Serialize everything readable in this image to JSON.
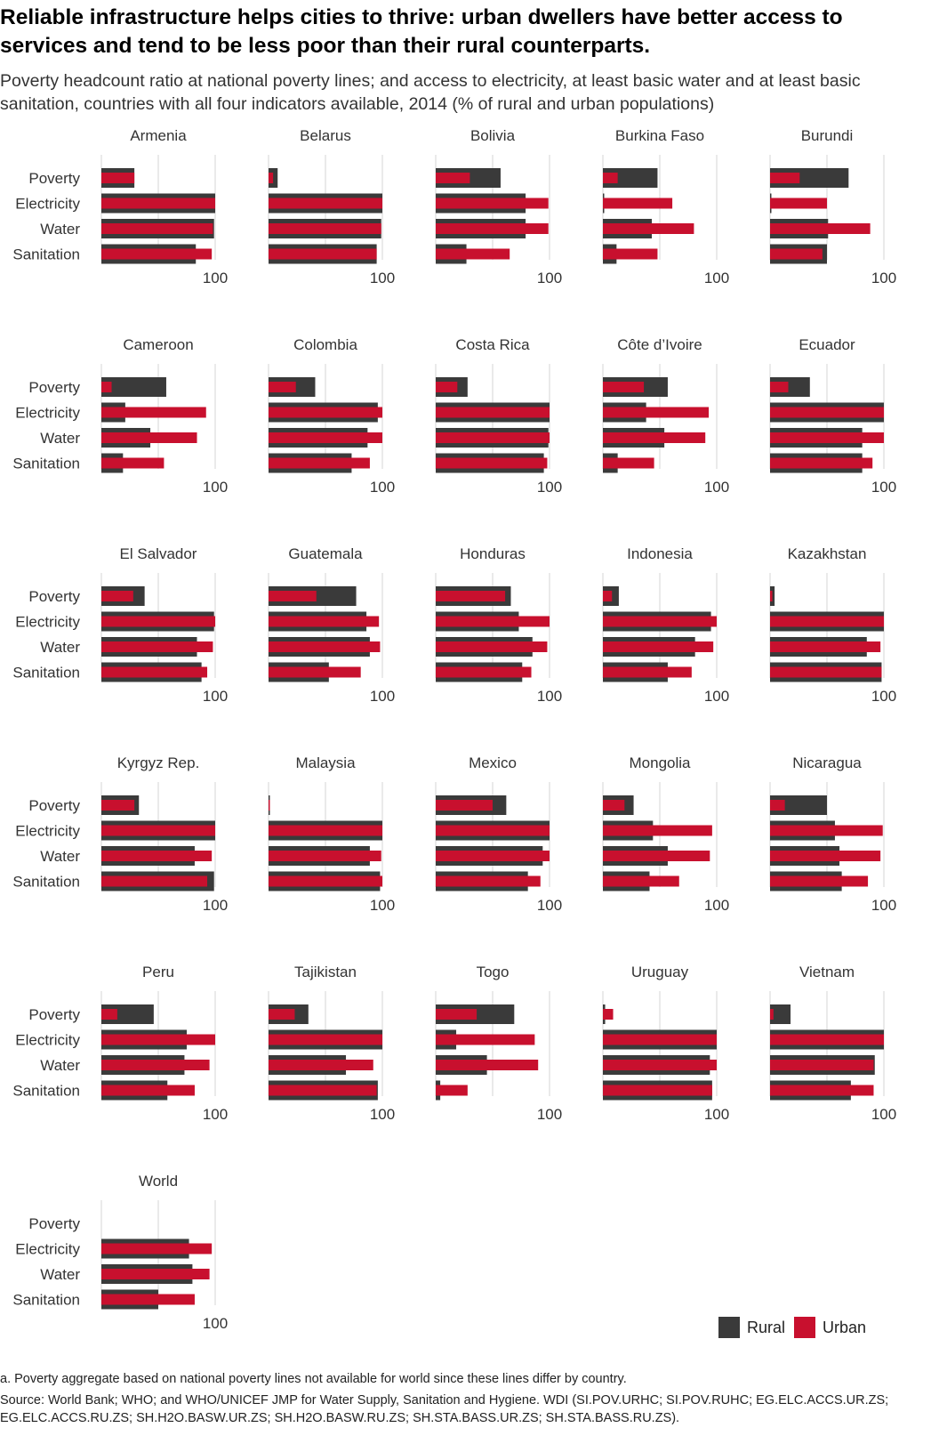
{
  "title": "Reliable infrastructure helps cities to thrive: urban dwellers have better access to services and tend to be less poor than their rural counterparts.",
  "subtitle": "Poverty headcount ratio at national poverty lines; and access to electricity, at least basic water and at least basic sanitation, countries with all four indicators available, 2014 (% of rural and urban populations)",
  "legend": {
    "rural": "Rural",
    "urban": "Urban"
  },
  "footnote": "a. Poverty aggregate based on national poverty lines not available for world since these lines differ by country.",
  "source": "Source: World Bank; WHO; and WHO/UNICEF JMP for Water Supply, Sanitation and Hygiene. WDI (SI.POV.URHC; SI.POV.RUHC; EG.ELC.ACCS.UR.ZS; EG.ELC.ACCS.RU.ZS; SH.H2O.BASW.UR.ZS; SH.H2O.BASW.RU.ZS; SH.STA.BASS.UR.ZS; SH.STA.BASS.RU.ZS).",
  "colors": {
    "rural": "#3a3a3a",
    "urban": "#c8102e",
    "grid": "#e3e3e3"
  },
  "chart_data": {
    "type": "bar",
    "orientation": "horizontal",
    "layout": "small-multiples",
    "xlim": [
      0,
      100
    ],
    "xticks": [
      100
    ],
    "categories": [
      "Poverty",
      "Electricity",
      "Water",
      "Sanitation"
    ],
    "series_names": [
      "Rural",
      "Urban"
    ],
    "panels": [
      {
        "name": "Armenia",
        "rural": [
          29,
          100,
          99,
          83
        ],
        "urban": [
          29,
          100,
          98,
          97
        ]
      },
      {
        "name": "Belarus",
        "rural": [
          8,
          100,
          99,
          95
        ],
        "urban": [
          4,
          100,
          99,
          95
        ]
      },
      {
        "name": "Bolivia",
        "rural": [
          57,
          79,
          79,
          27
        ],
        "urban": [
          30,
          99,
          99,
          65
        ]
      },
      {
        "name": "Burkina Faso",
        "rural": [
          48,
          1,
          43,
          12
        ],
        "urban": [
          13,
          61,
          80,
          48
        ]
      },
      {
        "name": "Burundi",
        "rural": [
          69,
          1,
          51,
          50
        ],
        "urban": [
          26,
          50,
          88,
          46
        ]
      },
      {
        "name": "Cameroon",
        "rural": [
          57,
          21,
          43,
          19
        ],
        "urban": [
          9,
          92,
          84,
          55
        ]
      },
      {
        "name": "Colombia",
        "rural": [
          41,
          96,
          87,
          73
        ],
        "urban": [
          24,
          100,
          100,
          89
        ]
      },
      {
        "name": "Costa Rica",
        "rural": [
          28,
          100,
          99,
          95
        ],
        "urban": [
          19,
          100,
          100,
          98
        ]
      },
      {
        "name": "Côte d’Ivoire",
        "rural": [
          57,
          38,
          54,
          13
        ],
        "urban": [
          36,
          93,
          90,
          45
        ]
      },
      {
        "name": "Ecuador",
        "rural": [
          35,
          100,
          81,
          81
        ],
        "urban": [
          16,
          100,
          100,
          90
        ]
      },
      {
        "name": "El Salvador",
        "rural": [
          38,
          99,
          84,
          88
        ],
        "urban": [
          28,
          100,
          98,
          93
        ]
      },
      {
        "name": "Guatemala",
        "rural": [
          77,
          86,
          89,
          53
        ],
        "urban": [
          42,
          97,
          98,
          81
        ]
      },
      {
        "name": "Honduras",
        "rural": [
          66,
          73,
          85,
          76
        ],
        "urban": [
          61,
          100,
          98,
          84
        ]
      },
      {
        "name": "Indonesia",
        "rural": [
          14,
          95,
          81,
          57
        ],
        "urban": [
          8,
          100,
          97,
          78
        ]
      },
      {
        "name": "Kazakhstan",
        "rural": [
          4,
          100,
          85,
          98
        ],
        "urban": [
          2,
          100,
          97,
          98
        ]
      },
      {
        "name": "Kyrgyz Rep.",
        "rural": [
          33,
          100,
          82,
          99
        ],
        "urban": [
          29,
          100,
          97,
          93
        ]
      },
      {
        "name": "Malaysia",
        "rural": [
          1,
          100,
          89,
          98
        ],
        "urban": [
          1,
          100,
          99,
          100
        ]
      },
      {
        "name": "Mexico",
        "rural": [
          62,
          100,
          94,
          81
        ],
        "urban": [
          50,
          100,
          100,
          92
        ]
      },
      {
        "name": "Mongolia",
        "rural": [
          27,
          44,
          57,
          41
        ],
        "urban": [
          19,
          96,
          94,
          67
        ]
      },
      {
        "name": "Nicaragua",
        "rural": [
          50,
          57,
          61,
          63
        ],
        "urban": [
          13,
          99,
          97,
          86
        ]
      },
      {
        "name": "Peru",
        "rural": [
          46,
          75,
          73,
          58
        ],
        "urban": [
          14,
          100,
          95,
          82
        ]
      },
      {
        "name": "Tajikistan",
        "rural": [
          35,
          100,
          68,
          96
        ],
        "urban": [
          23,
          100,
          92,
          95
        ]
      },
      {
        "name": "Togo",
        "rural": [
          69,
          18,
          45,
          4
        ],
        "urban": [
          36,
          87,
          90,
          28
        ]
      },
      {
        "name": "Uruguay",
        "rural": [
          2,
          100,
          94,
          96
        ],
        "urban": [
          9,
          100,
          100,
          96
        ]
      },
      {
        "name": "Vietnam",
        "rural": [
          18,
          100,
          92,
          71
        ],
        "urban": [
          3,
          100,
          91,
          91
        ]
      },
      {
        "name": "World",
        "rural": [
          null,
          77,
          80,
          50
        ],
        "urban": [
          null,
          97,
          95,
          82
        ]
      }
    ]
  }
}
